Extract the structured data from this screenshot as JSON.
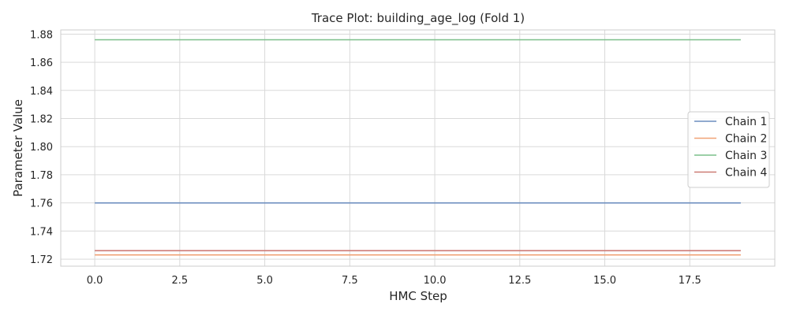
{
  "chart_data": {
    "type": "line",
    "title": "Trace Plot: building_age_log (Fold 1)",
    "xlabel": "HMC Step",
    "ylabel": "Parameter Value",
    "xlim": [
      -1.0,
      20.0
    ],
    "ylim": [
      1.715,
      1.883
    ],
    "x_ticks": [
      0.0,
      2.5,
      5.0,
      7.5,
      10.0,
      12.5,
      15.0,
      17.5
    ],
    "x_tick_labels": [
      "0.0",
      "2.5",
      "5.0",
      "7.5",
      "10.0",
      "12.5",
      "15.0",
      "17.5"
    ],
    "y_ticks": [
      1.72,
      1.74,
      1.76,
      1.78,
      1.8,
      1.82,
      1.84,
      1.86,
      1.88
    ],
    "y_tick_labels": [
      "1.72",
      "1.74",
      "1.76",
      "1.78",
      "1.80",
      "1.82",
      "1.84",
      "1.86",
      "1.88"
    ],
    "grid": true,
    "legend_position": "center-right",
    "x": [
      0,
      1,
      2,
      3,
      4,
      5,
      6,
      7,
      8,
      9,
      10,
      11,
      12,
      13,
      14,
      15,
      16,
      17,
      18,
      19
    ],
    "series": [
      {
        "name": "Chain 1",
        "color": "#6c8ebf",
        "values": [
          1.76,
          1.76,
          1.76,
          1.76,
          1.76,
          1.76,
          1.76,
          1.76,
          1.76,
          1.76,
          1.76,
          1.76,
          1.76,
          1.76,
          1.76,
          1.76,
          1.76,
          1.76,
          1.76,
          1.76
        ]
      },
      {
        "name": "Chain 2",
        "color": "#f0a275",
        "values": [
          1.723,
          1.723,
          1.723,
          1.723,
          1.723,
          1.723,
          1.723,
          1.723,
          1.723,
          1.723,
          1.723,
          1.723,
          1.723,
          1.723,
          1.723,
          1.723,
          1.723,
          1.723,
          1.723,
          1.723
        ]
      },
      {
        "name": "Chain 3",
        "color": "#7cbf8a",
        "values": [
          1.876,
          1.876,
          1.876,
          1.876,
          1.876,
          1.876,
          1.876,
          1.876,
          1.876,
          1.876,
          1.876,
          1.876,
          1.876,
          1.876,
          1.876,
          1.876,
          1.876,
          1.876,
          1.876,
          1.876
        ]
      },
      {
        "name": "Chain 4",
        "color": "#cc7a74",
        "values": [
          1.726,
          1.726,
          1.726,
          1.726,
          1.726,
          1.726,
          1.726,
          1.726,
          1.726,
          1.726,
          1.726,
          1.726,
          1.726,
          1.726,
          1.726,
          1.726,
          1.726,
          1.726,
          1.726,
          1.726
        ]
      }
    ]
  }
}
